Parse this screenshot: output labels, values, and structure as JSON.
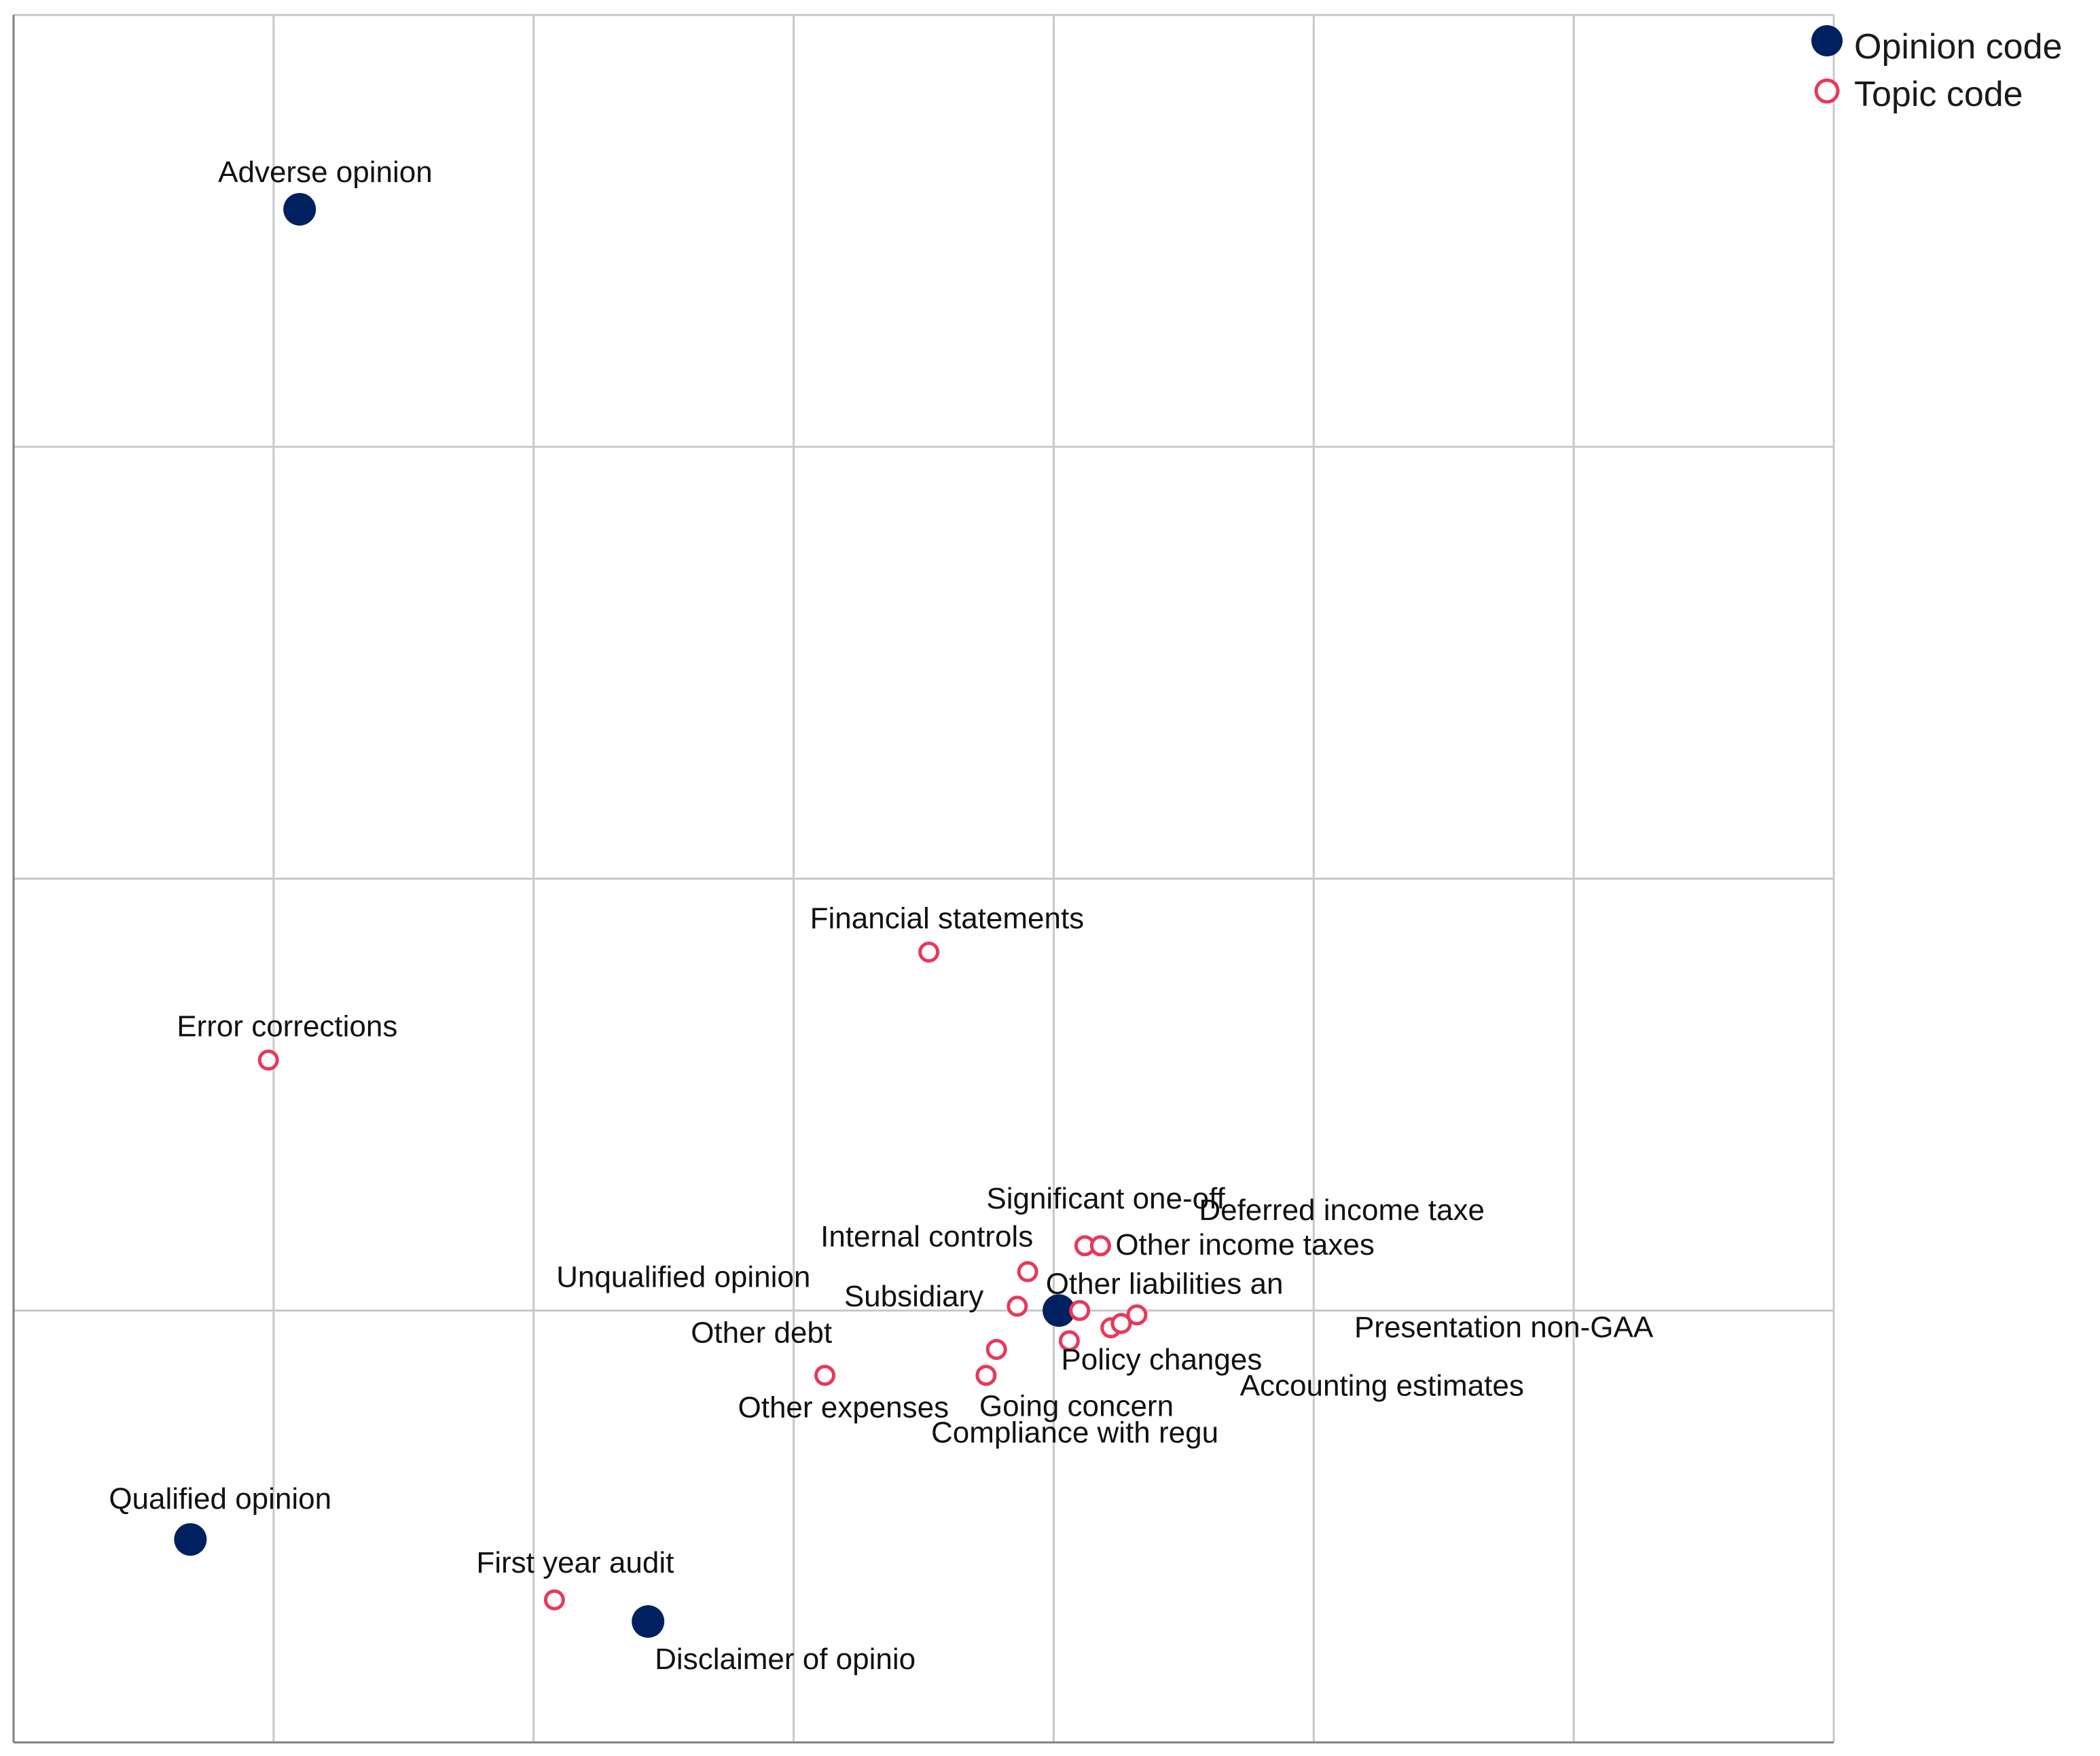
{
  "chart_data": {
    "type": "scatter",
    "title": "",
    "xlabel": "",
    "ylabel": "",
    "xlim": [
      -2.0,
      1.5
    ],
    "ylim": [
      -1.0,
      3.0
    ],
    "grid": true,
    "legend_position": "top-right",
    "colors": {
      "opinion": "#002060",
      "topic": "#e8385a"
    },
    "series": [
      {
        "name": "Opinion code",
        "marker": "filled-circle",
        "points": [
          {
            "label": "Adverse opinion",
            "x": -1.45,
            "y": 2.55
          },
          {
            "label": "Unqualified opinion",
            "x": 0.01,
            "y": 0.0
          },
          {
            "label": "Qualified opinion",
            "x": -1.66,
            "y": -0.53
          },
          {
            "label": "Disclaimer of opinio",
            "x": -0.78,
            "y": -0.72
          }
        ]
      },
      {
        "name": "Topic code",
        "marker": "open-circle",
        "points": [
          {
            "label": "Financial statements",
            "x": -0.24,
            "y": 0.83
          },
          {
            "label": "Error corrections",
            "x": -1.51,
            "y": 0.58
          },
          {
            "label": "Significant one-off",
            "x": 0.06,
            "y": 0.15
          },
          {
            "label": "Deferred income taxe",
            "x": 0.09,
            "y": 0.15
          },
          {
            "label": "Other income taxes",
            "x": 0.09,
            "y": 0.15
          },
          {
            "label": "Internal controls",
            "x": -0.05,
            "y": 0.09
          },
          {
            "label": "Other liabilities an",
            "x": 0.05,
            "y": 0.0
          },
          {
            "label": "Subsidiary",
            "x": -0.07,
            "y": 0.01
          },
          {
            "label": "Presentation non-GAA",
            "x": 0.16,
            "y": -0.01
          },
          {
            "label": "Policy changes",
            "x": 0.03,
            "y": -0.07
          },
          {
            "label": "Other debt",
            "x": -0.11,
            "y": -0.09
          },
          {
            "label": "Going concern",
            "x": -0.13,
            "y": -0.15
          },
          {
            "label": "Accounting estimates",
            "x": 0.11,
            "y": -0.04
          },
          {
            "label": "Other expenses",
            "x": -0.44,
            "y": -0.15
          },
          {
            "label": "Compliance with regu",
            "x": 0.13,
            "y": -0.03
          },
          {
            "label": "First year audit",
            "x": -0.96,
            "y": -0.67
          }
        ]
      }
    ]
  }
}
